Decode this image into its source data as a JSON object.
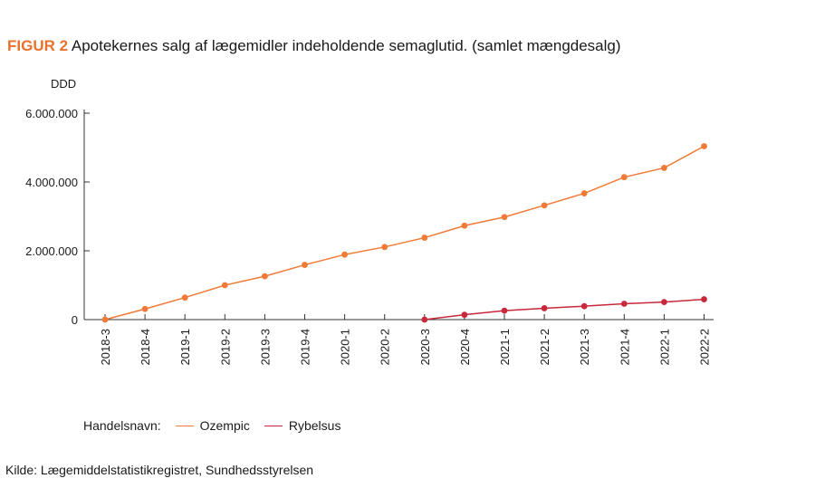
{
  "figure": {
    "label": "FIGUR 2",
    "title": "Apotekernes salg af lægemidler indeholdende semaglutid. (samlet mængdesalg)"
  },
  "legend": {
    "title": "Handelsnavn:"
  },
  "source": "Kilde: Lægemiddelstatistikregistret, Sundhedsstyrelsen",
  "chart_data": {
    "type": "line",
    "ylabel": "DDD",
    "xlabel": "",
    "ylim": [
      0,
      6000000
    ],
    "yticks": [
      0,
      2000000,
      4000000,
      6000000
    ],
    "ytick_labels": [
      "0",
      "2.000.000",
      "4.000.000",
      "6.000.000"
    ],
    "categories": [
      "2018-3",
      "2018-4",
      "2019-1",
      "2019-2",
      "2019-3",
      "2019-4",
      "2020-1",
      "2020-2",
      "2020-3",
      "2020-4",
      "2021-1",
      "2021-2",
      "2021-3",
      "2021-4",
      "2022-1",
      "2022-2"
    ],
    "grid": false,
    "legend_position": "bottom-left",
    "series": [
      {
        "name": "Ozempic",
        "color": "#f07a36",
        "values": [
          0,
          310000,
          640000,
          1000000,
          1260000,
          1590000,
          1890000,
          2110000,
          2380000,
          2730000,
          2980000,
          3320000,
          3670000,
          4140000,
          4410000,
          5040000
        ]
      },
      {
        "name": "Rybelsus",
        "color": "#c8283c",
        "values": [
          null,
          null,
          null,
          null,
          null,
          null,
          null,
          null,
          0,
          140000,
          260000,
          330000,
          390000,
          460000,
          510000,
          590000
        ]
      }
    ]
  }
}
